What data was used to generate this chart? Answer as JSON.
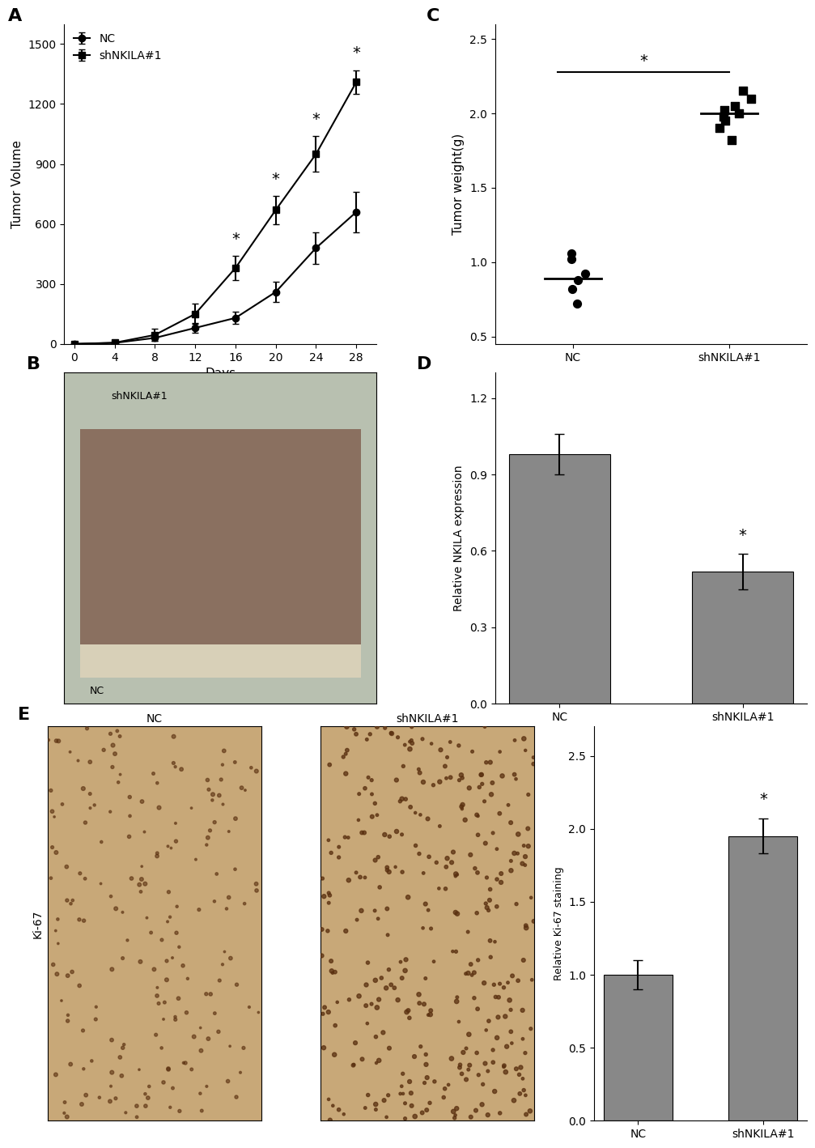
{
  "panel_A": {
    "days": [
      0,
      4,
      8,
      12,
      16,
      20,
      24,
      28
    ],
    "NC_mean": [
      0,
      5,
      30,
      80,
      130,
      260,
      480,
      660
    ],
    "NC_err": [
      0,
      3,
      15,
      25,
      30,
      50,
      80,
      100
    ],
    "shNKILA_mean": [
      0,
      6,
      45,
      150,
      380,
      670,
      950,
      1310
    ],
    "shNKILA_err": [
      0,
      4,
      30,
      50,
      60,
      70,
      90,
      60
    ],
    "sig_days": [
      16,
      20,
      24,
      28
    ],
    "ylabel": "Tumor Volume",
    "xlabel": "Days",
    "yticks": [
      0,
      300,
      600,
      900,
      1200,
      1500
    ],
    "xticks": [
      0,
      4,
      8,
      12,
      16,
      20,
      24,
      28
    ],
    "ylim": [
      0,
      1600
    ],
    "xlim": [
      -1,
      30
    ]
  },
  "panel_C": {
    "NC_points": [
      0.72,
      0.82,
      0.88,
      0.92,
      1.02,
      1.06
    ],
    "NC_mean": 0.89,
    "shNKILA_points": [
      1.82,
      1.9,
      1.95,
      1.98,
      2.0,
      2.02,
      2.05,
      2.1,
      2.15
    ],
    "shNKILA_mean": 2.0,
    "ylabel": "Tumor weight(g)",
    "yticks": [
      0.5,
      1.0,
      1.5,
      2.0,
      2.5
    ],
    "ylim": [
      0.45,
      2.6
    ],
    "sig_y": 2.28,
    "categories": [
      "NC",
      "shNKILA#1"
    ]
  },
  "panel_D": {
    "categories": [
      "NC",
      "shNKILA#1"
    ],
    "means": [
      0.98,
      0.52
    ],
    "errors": [
      0.08,
      0.07
    ],
    "ylabel": "Relative NKILA expression",
    "yticks": [
      0.0,
      0.3,
      0.6,
      0.9,
      1.2
    ],
    "ylim": [
      0,
      1.3
    ],
    "bar_color": "#888888"
  },
  "panel_E_bar": {
    "categories": [
      "NC",
      "shNKILA#1"
    ],
    "means": [
      1.0,
      1.95
    ],
    "errors": [
      0.1,
      0.12
    ],
    "ylabel": "Relative Ki-67 staining",
    "yticks": [
      0.0,
      0.5,
      1.0,
      1.5,
      2.0,
      2.5
    ],
    "ylim": [
      0,
      2.7
    ],
    "bar_color": "#888888"
  },
  "colors": {
    "black": "#000000",
    "gray": "#888888",
    "white": "#ffffff"
  }
}
